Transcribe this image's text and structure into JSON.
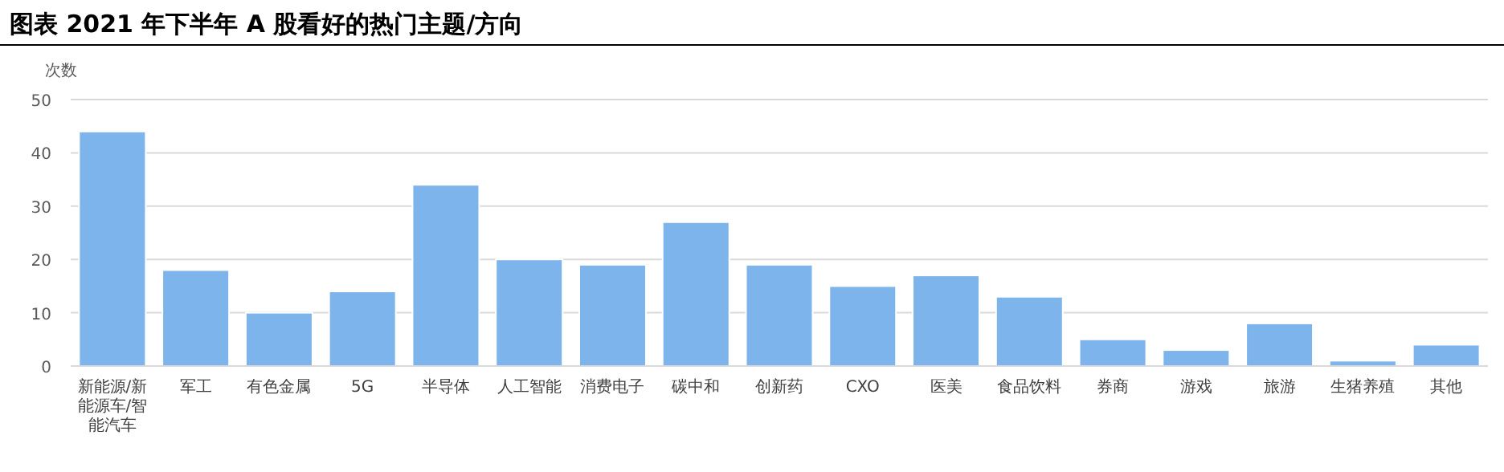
{
  "chart_data": {
    "type": "bar",
    "title": "图表 2021 年下半年 A 股看好的热门主题/方向",
    "ylabel": "次数",
    "categories": [
      "新能源/新能源车/智能汽车",
      "军工",
      "有色金属",
      "5G",
      "半导体",
      "人工智能",
      "消费电子",
      "碳中和",
      "创新药",
      "CXO",
      "医美",
      "食品饮料",
      "券商",
      "游戏",
      "旅游",
      "生猪养殖",
      "其他"
    ],
    "values": [
      44,
      18,
      10,
      14,
      34,
      20,
      19,
      27,
      19,
      15,
      17,
      13,
      5,
      3,
      8,
      1,
      4
    ],
    "color": "#7cb4eb",
    "ylim": [
      0,
      50
    ],
    "yticks": [
      0,
      10,
      20,
      30,
      40,
      50
    ],
    "grid": "y"
  }
}
